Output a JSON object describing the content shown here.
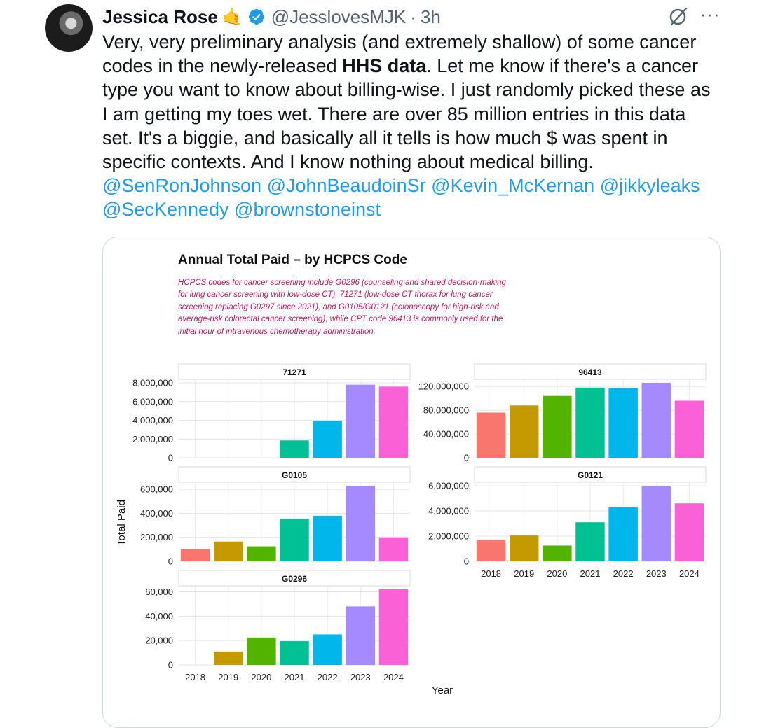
{
  "tweet": {
    "author_name": "Jessica Rose",
    "emoji": "🤙",
    "handle": "@JesslovesMJK",
    "separator": "·",
    "time": "3h",
    "more": "···",
    "text": {
      "line_segments": [
        {
          "t": "Very, very preliminary analysis (and extremely shallow) of some cancer codes in the newly-released ",
          "style": "normal"
        },
        {
          "t": "HHS data",
          "style": "bold"
        },
        {
          "t": ". Let me know if there's a cancer type you want to know about billing-wise. I just randomly picked these as I am getting my toes wet. There are over 85 million entries in this data set. It's a biggie, and basically all it tells is how much $ was spent in specific contexts. And I know nothing about medical billing. ",
          "style": "normal"
        },
        {
          "t": "@SenRonJohnson",
          "style": "mention"
        },
        {
          "t": " ",
          "style": "normal"
        },
        {
          "t": "@JohnBeaudoinSr",
          "style": "mention"
        },
        {
          "t": " ",
          "style": "normal"
        },
        {
          "t": "@Kevin_McKernan",
          "style": "mention"
        },
        {
          "t": " ",
          "style": "normal"
        },
        {
          "t": "@jikkyleaks",
          "style": "mention"
        },
        {
          "t": " ",
          "style": "normal"
        },
        {
          "t": "@SecKennedy",
          "style": "mention"
        },
        {
          "t": " ",
          "style": "normal"
        },
        {
          "t": "@brownstoneinst",
          "style": "mention"
        }
      ]
    },
    "icons": {
      "grok": "grok-icon",
      "more": "more-icon",
      "verified": "verified-badge-icon"
    },
    "colors": {
      "mention": "#1d9bf0",
      "verified": "#1d9bf0",
      "muted": "#536471"
    }
  },
  "chart_image": {
    "title": "Annual Total Paid – by HCPCS Code",
    "subtitle": "HCPCS codes for cancer screening include G0296 (counseling and shared decision-making for lung cancer screening with low-dose CT), 71271 (low-dose CT thorax for lung cancer screening replacing G0297 since 2021), and G0105/G0121 (colonoscopy for high-risk and average-risk colorectal cancer screening), while CPT code 96413 is commonly used for the initial hour of intravenous chemotherapy administration.",
    "ylabel": "Total Paid",
    "xlabel": "Year"
  },
  "chart_data": [
    {
      "type": "bar",
      "title": "71271",
      "categories": [
        "2018",
        "2019",
        "2020",
        "2021",
        "2022",
        "2023",
        "2024"
      ],
      "values": [
        0,
        0,
        0,
        1850000,
        3950000,
        7800000,
        7600000
      ],
      "ylim": [
        0,
        8000000
      ],
      "yticks": [
        0,
        2000000,
        4000000,
        6000000,
        8000000
      ],
      "ytick_labels": [
        "0",
        "2,000,000",
        "4,000,000",
        "6,000,000",
        "8,000,000"
      ],
      "show_xticks": false
    },
    {
      "type": "bar",
      "title": "96413",
      "categories": [
        "2018",
        "2019",
        "2020",
        "2021",
        "2022",
        "2023",
        "2024"
      ],
      "values": [
        76000000,
        88000000,
        104000000,
        118000000,
        117000000,
        126000000,
        96000000
      ],
      "ylim": [
        0,
        120000000
      ],
      "yticks": [
        0,
        40000000,
        80000000,
        120000000
      ],
      "ytick_labels": [
        "0",
        "40,000,000",
        "80,000,000",
        "120,000,000"
      ],
      "show_xticks": false
    },
    {
      "type": "bar",
      "title": "G0105",
      "categories": [
        "2018",
        "2019",
        "2020",
        "2021",
        "2022",
        "2023",
        "2024"
      ],
      "values": [
        105000,
        165000,
        125000,
        355000,
        380000,
        630000,
        200000
      ],
      "ylim": [
        0,
        600000
      ],
      "yticks": [
        0,
        200000,
        400000,
        600000
      ],
      "ytick_labels": [
        "0",
        "200,000",
        "400,000",
        "600,000"
      ],
      "show_xticks": false
    },
    {
      "type": "bar",
      "title": "G0121",
      "categories": [
        "2018",
        "2019",
        "2020",
        "2021",
        "2022",
        "2023",
        "2024"
      ],
      "values": [
        1700000,
        2050000,
        1250000,
        3100000,
        4300000,
        5950000,
        4600000
      ],
      "ylim": [
        0,
        6000000
      ],
      "yticks": [
        0,
        2000000,
        4000000,
        6000000
      ],
      "ytick_labels": [
        "0",
        "2,000,000",
        "4,000,000",
        "6,000,000"
      ],
      "show_xticks": true
    },
    {
      "type": "bar",
      "title": "G0296",
      "categories": [
        "2018",
        "2019",
        "2020",
        "2021",
        "2022",
        "2023",
        "2024"
      ],
      "values": [
        0,
        11000,
        22500,
        19500,
        25000,
        48000,
        62000
      ],
      "ylim": [
        0,
        60000
      ],
      "yticks": [
        0,
        20000,
        40000,
        60000
      ],
      "ytick_labels": [
        "0",
        "20,000",
        "40,000",
        "60,000"
      ],
      "show_xticks": true
    }
  ],
  "bar_colors": [
    "#f8766d",
    "#c49a00",
    "#53b400",
    "#00c094",
    "#00b6eb",
    "#a58aff",
    "#fb61d7"
  ]
}
